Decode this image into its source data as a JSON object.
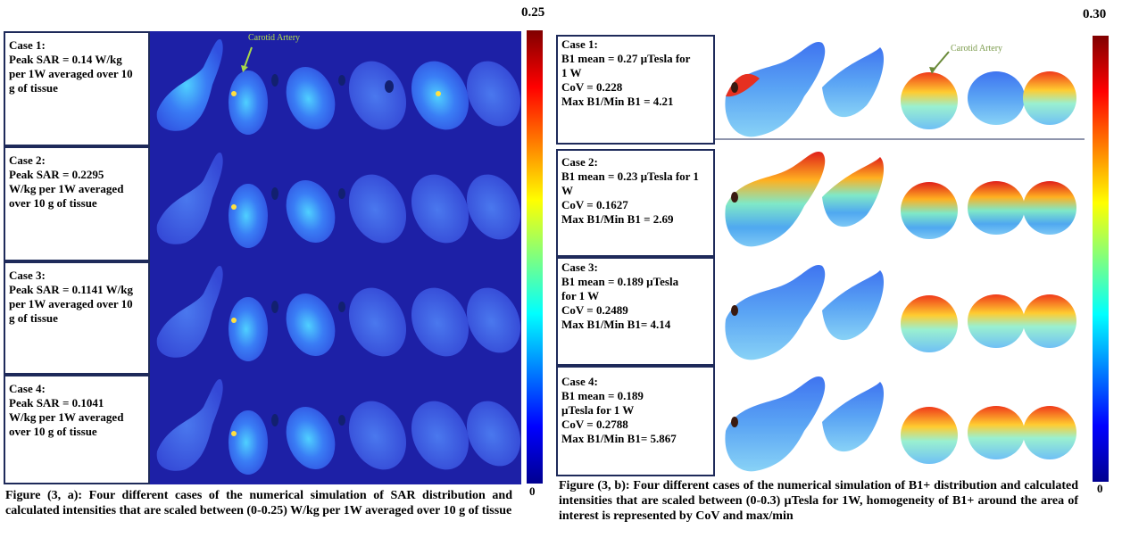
{
  "figure_a": {
    "scale_max": "0.25",
    "scale_min": "0",
    "annotation": "Carotid Artery",
    "cases": [
      {
        "title": "Case 1:",
        "lines": [
          "Peak SAR = 0.14 W/kg",
          "per 1W averaged over 10",
          "g of tissue"
        ]
      },
      {
        "title": "Case 2:",
        "lines": [
          "Peak SAR = 0.2295",
          "W/kg per 1W averaged",
          "over 10 g of tissue"
        ]
      },
      {
        "title": "Case 3:",
        "lines": [
          "Peak SAR = 0.1141 W/kg",
          "per 1W averaged over 10",
          "g of tissue"
        ]
      },
      {
        "title": "Case 4:",
        "lines": [
          "Peak SAR = 0.1041",
          "W/kg per 1W averaged",
          "over 10 g of tissue"
        ]
      }
    ],
    "caption": "Figure (3, a): Four different cases of the numerical simulation of SAR distribution and calculated intensities that are scaled between (0-0.25) W/kg per 1W averaged over 10 g of tissue"
  },
  "figure_b": {
    "scale_max": "0.30",
    "scale_min": "0",
    "annotation": "Carotid Artery",
    "cases": [
      {
        "title": "Case 1:",
        "lines": [
          "B1 mean = 0.27 µTesla for",
          "1 W",
          "CoV = 0.228",
          "Max B1/Min B1 = 4.21"
        ]
      },
      {
        "title": "Case 2:",
        "lines": [
          "B1 mean = 0.23 µTesla for 1",
          "W",
          "CoV = 0.1627",
          "Max B1/Min B1 = 2.69"
        ]
      },
      {
        "title": "Case 3:",
        "lines": [
          "B1 mean = 0.189 µTesla",
          "for 1 W",
          "CoV = 0.2489",
          "Max B1/Min B1= 4.14"
        ]
      },
      {
        "title": "Case 4:",
        "lines": [
          "B1 mean = 0.189",
          "µTesla for 1 W",
          "CoV = 0.2788",
          "Max B1/Min B1= 5.867"
        ]
      }
    ],
    "caption": "Figure (3, b): Four different cases of the numerical simulation of B1+ distribution and calculated intensities that are scaled between (0-0.3) µTesla for 1W, homogeneity of B1+ around the area of interest is represented by CoV and max/min"
  }
}
